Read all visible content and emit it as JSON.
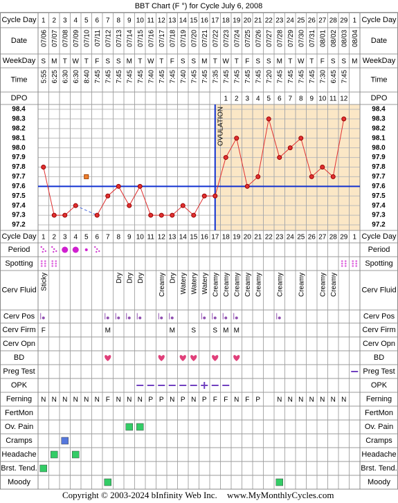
{
  "title": "BBT Chart (F °) for Cycle July 6, 2008",
  "footer": {
    "copyright": "Copyright © 2003-2024 bInfinity Web Inc.",
    "site": "www.MyMonthlyCycles.com"
  },
  "row_labels": {
    "cycle_day": "Cycle Day",
    "date": "Date",
    "weekday": "WeekDay",
    "time": "Time",
    "dpo": "DPO",
    "period": "Period",
    "spotting": "Spotting",
    "cerv_fluid": "Cerv Fluid",
    "cerv_pos": "Cerv Pos",
    "cerv_firm": "Cerv Firm",
    "cerv_opn": "Cerv Opn",
    "bd": "BD",
    "preg_test": "Preg Test",
    "opk": "OPK",
    "ferning": "Ferning",
    "fertmon": "FertMon",
    "ov_pain": "Ov. Pain",
    "cramps": "Cramps",
    "headache": "Headache",
    "breast_tend": "Brst. Tend.",
    "moody": "Moody"
  },
  "rows": {
    "cycle_day": [
      1,
      2,
      3,
      4,
      5,
      6,
      7,
      8,
      9,
      10,
      11,
      12,
      13,
      14,
      15,
      16,
      17,
      18,
      19,
      20,
      21,
      22,
      23,
      24,
      25,
      26,
      27,
      28,
      29,
      1
    ],
    "date": [
      "07/06",
      "07/07",
      "07/08",
      "07/09",
      "07/10",
      "07/11",
      "07/12",
      "07/13",
      "07/14",
      "07/15",
      "07/16",
      "07/17",
      "07/18",
      "07/19",
      "07/20",
      "07/21",
      "07/22",
      "07/23",
      "07/24",
      "07/25",
      "07/26",
      "07/27",
      "07/28",
      "07/29",
      "07/30",
      "07/31",
      "08/01",
      "08/02",
      "08/03",
      "08/04"
    ],
    "weekday": [
      "S",
      "M",
      "T",
      "W",
      "T",
      "F",
      "S",
      "S",
      "M",
      "T",
      "W",
      "T",
      "F",
      "S",
      "S",
      "M",
      "T",
      "W",
      "T",
      "F",
      "S",
      "S",
      "M",
      "T",
      "W",
      "T",
      "F",
      "S",
      "S",
      "M"
    ],
    "time": [
      "5:55",
      "6:25",
      "6:30",
      "6:30",
      "8:40",
      "7:45",
      "7:45",
      "7:45",
      "7:45",
      "7:45",
      "7:40",
      "7:45",
      "7:45",
      "7:40",
      "7:45",
      "7:45",
      "7:35",
      "7:45",
      "7:45",
      "7:45",
      "7:45",
      "7:20",
      "7:45",
      "7:45",
      "7:45",
      "7:45",
      "7:30",
      "6:45",
      "7:45",
      null
    ],
    "dpo": [
      null,
      null,
      null,
      null,
      null,
      null,
      null,
      null,
      null,
      null,
      null,
      null,
      null,
      null,
      null,
      null,
      null,
      1,
      2,
      3,
      4,
      5,
      6,
      7,
      8,
      9,
      10,
      11,
      12,
      null
    ],
    "period": [
      1,
      1,
      3,
      3,
      2,
      1,
      null,
      null,
      null,
      null,
      null,
      null,
      null,
      null,
      null,
      null,
      null,
      null,
      null,
      null,
      null,
      null,
      null,
      null,
      null,
      null,
      null,
      null,
      null,
      null
    ],
    "spotting": [
      1,
      1,
      null,
      null,
      null,
      null,
      null,
      null,
      null,
      null,
      null,
      null,
      null,
      null,
      null,
      null,
      null,
      null,
      null,
      null,
      null,
      null,
      null,
      null,
      null,
      null,
      null,
      null,
      1,
      1
    ],
    "cerv_fluid": [
      "Sticky",
      null,
      null,
      null,
      null,
      null,
      null,
      "Dry",
      "Dry",
      "Dry",
      null,
      "Creamy",
      "Dry",
      "Watery",
      "Watery",
      "Watery",
      "Creamy",
      "Creamy",
      "Creamy",
      "Creamy",
      "Creamy",
      null,
      "Creamy",
      null,
      "Creamy",
      null,
      "Creamy",
      "Creamy",
      null,
      null
    ],
    "cerv_pos": [
      1,
      null,
      null,
      null,
      null,
      null,
      1,
      1,
      1,
      1,
      null,
      1,
      1,
      null,
      null,
      1,
      1,
      1,
      1,
      null,
      null,
      null,
      1,
      null,
      null,
      null,
      null,
      null,
      null,
      null
    ],
    "cerv_firm": [
      "F",
      null,
      null,
      null,
      null,
      null,
      "M",
      null,
      null,
      null,
      null,
      null,
      "M",
      null,
      "S",
      null,
      "S",
      "M",
      "M",
      null,
      null,
      null,
      null,
      null,
      null,
      null,
      null,
      null,
      null,
      null
    ],
    "bd": [
      null,
      null,
      null,
      null,
      null,
      null,
      1,
      null,
      null,
      null,
      null,
      1,
      null,
      1,
      1,
      null,
      1,
      null,
      1,
      null,
      null,
      null,
      null,
      null,
      null,
      null,
      null,
      null,
      null,
      null
    ],
    "preg_test": [
      null,
      null,
      null,
      null,
      null,
      null,
      null,
      null,
      null,
      null,
      null,
      null,
      null,
      null,
      null,
      null,
      null,
      null,
      null,
      null,
      null,
      null,
      null,
      null,
      null,
      null,
      null,
      null,
      null,
      0
    ],
    "opk": [
      null,
      null,
      null,
      null,
      null,
      null,
      null,
      null,
      null,
      0,
      0,
      0,
      0,
      0,
      0,
      1,
      0,
      0,
      null,
      null,
      null,
      null,
      null,
      null,
      null,
      null,
      null,
      null,
      null,
      null
    ],
    "ferning": [
      "N",
      "N",
      "N",
      "N",
      "N",
      "N",
      "F",
      "N",
      "N",
      "N",
      "P",
      "P",
      "N",
      "P",
      "N",
      "P",
      "F",
      "F",
      "N",
      "F",
      "P",
      null,
      "N",
      "N",
      "N",
      "N",
      "N",
      "N",
      "N",
      null
    ],
    "ov_pain": [
      null,
      null,
      null,
      null,
      null,
      null,
      null,
      null,
      1,
      1,
      null,
      null,
      null,
      null,
      null,
      null,
      null,
      null,
      null,
      null,
      null,
      null,
      null,
      null,
      null,
      null,
      null,
      null,
      null,
      null
    ],
    "cramps": [
      null,
      null,
      1,
      null,
      null,
      null,
      null,
      null,
      null,
      null,
      null,
      null,
      null,
      null,
      null,
      null,
      null,
      null,
      null,
      null,
      null,
      null,
      null,
      null,
      null,
      null,
      null,
      null,
      null,
      null
    ],
    "headache": [
      null,
      1,
      null,
      1,
      null,
      null,
      null,
      null,
      null,
      null,
      null,
      null,
      null,
      null,
      null,
      null,
      null,
      null,
      null,
      null,
      null,
      null,
      null,
      null,
      null,
      null,
      null,
      null,
      null,
      null
    ],
    "breast_tend": [
      1,
      null,
      null,
      null,
      null,
      null,
      null,
      null,
      null,
      null,
      null,
      null,
      null,
      null,
      null,
      null,
      null,
      null,
      null,
      null,
      null,
      null,
      null,
      null,
      null,
      null,
      null,
      null,
      null,
      null
    ],
    "moody": [
      null,
      null,
      null,
      null,
      null,
      null,
      1,
      null,
      null,
      null,
      null,
      null,
      null,
      null,
      null,
      null,
      null,
      null,
      null,
      null,
      null,
      null,
      1,
      null,
      null,
      null,
      null,
      null,
      null,
      null
    ]
  },
  "chart": {
    "type": "line",
    "values": [
      97.8,
      97.3,
      97.3,
      97.4,
      null,
      97.3,
      97.5,
      97.6,
      97.4,
      97.6,
      97.3,
      97.3,
      97.3,
      97.4,
      97.3,
      97.5,
      97.5,
      97.9,
      98.1,
      97.6,
      97.7,
      98.3,
      97.9,
      98.0,
      98.1,
      97.7,
      97.8,
      97.7,
      98.3,
      null
    ],
    "discarded": [
      null,
      null,
      null,
      null,
      97.7,
      null,
      null,
      null,
      null,
      null,
      null,
      null,
      null,
      null,
      null,
      null,
      null,
      null,
      null,
      null,
      null,
      null,
      null,
      null,
      null,
      null,
      null,
      null,
      null,
      null
    ],
    "color": "#e03030",
    "ylim": [
      97.2,
      98.4
    ],
    "yticks": [
      98.4,
      98.3,
      98.2,
      98.1,
      {
        "value": 98,
        "label": "98.0"
      },
      97.9,
      97.8,
      97.7,
      97.6,
      97.5,
      97.4,
      97.3,
      97.2
    ],
    "coverline": 97.6,
    "ovulation_day": 17,
    "ovulation_label": "OVULATION"
  }
}
